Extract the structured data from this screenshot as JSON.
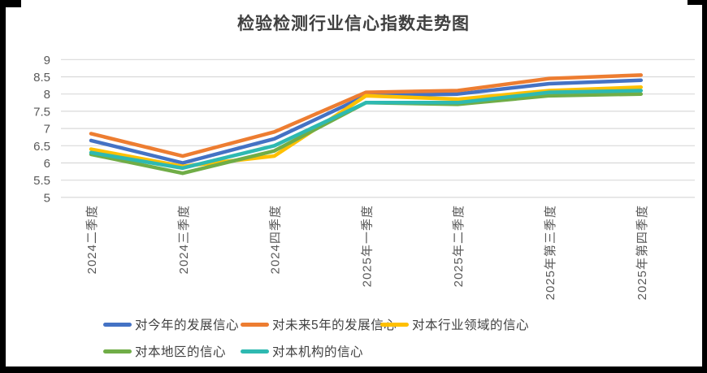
{
  "chart_data": {
    "type": "line",
    "title": "检验检测行业信心指数走势图",
    "categories": [
      "2024二季度",
      "2024三季度",
      "2024四季度",
      "2025年一季度",
      "2025年二季度",
      "2025年第三季度",
      "2025年第四季度"
    ],
    "series": [
      {
        "name": "对今年的发展信心",
        "color": "#4472C4",
        "values": [
          6.65,
          6.0,
          6.7,
          7.95,
          8.0,
          8.3,
          8.4
        ]
      },
      {
        "name": "对未来5年的发展信心",
        "color": "#ED7D31",
        "values": [
          6.85,
          6.2,
          6.9,
          8.05,
          8.1,
          8.45,
          8.55
        ]
      },
      {
        "name": "对本行业领域的信心",
        "color": "#FFC000",
        "values": [
          6.4,
          5.9,
          6.2,
          7.95,
          7.85,
          8.1,
          8.2
        ]
      },
      {
        "name": "对本地区的信心",
        "color": "#70AD47",
        "values": [
          6.25,
          5.7,
          6.35,
          7.75,
          7.7,
          7.95,
          8.0
        ]
      },
      {
        "name": "对本机构的信心",
        "color": "#2EB9B1",
        "values": [
          6.3,
          5.85,
          6.5,
          7.75,
          7.75,
          8.05,
          8.1
        ]
      }
    ],
    "ylim": [
      5,
      9
    ],
    "yticks": {
      "values": [
        5,
        5.5,
        6,
        6.5,
        7,
        7.5,
        8,
        8.5,
        9
      ],
      "labels": [
        "5",
        "5.5",
        "6",
        "6.5",
        "7",
        "7.5",
        "8",
        "8.5",
        "9"
      ]
    },
    "xlabel": "",
    "ylabel": "",
    "grid": "horizontal-only",
    "legend_position": "bottom",
    "style": {
      "grid_color": "#D9D9D9",
      "tick_color": "#595959",
      "title_color": "#404040",
      "legend_text_color": "#404040",
      "background": "#FFFFFF",
      "frame_color": "#000000",
      "line_width": 4.5
    }
  }
}
